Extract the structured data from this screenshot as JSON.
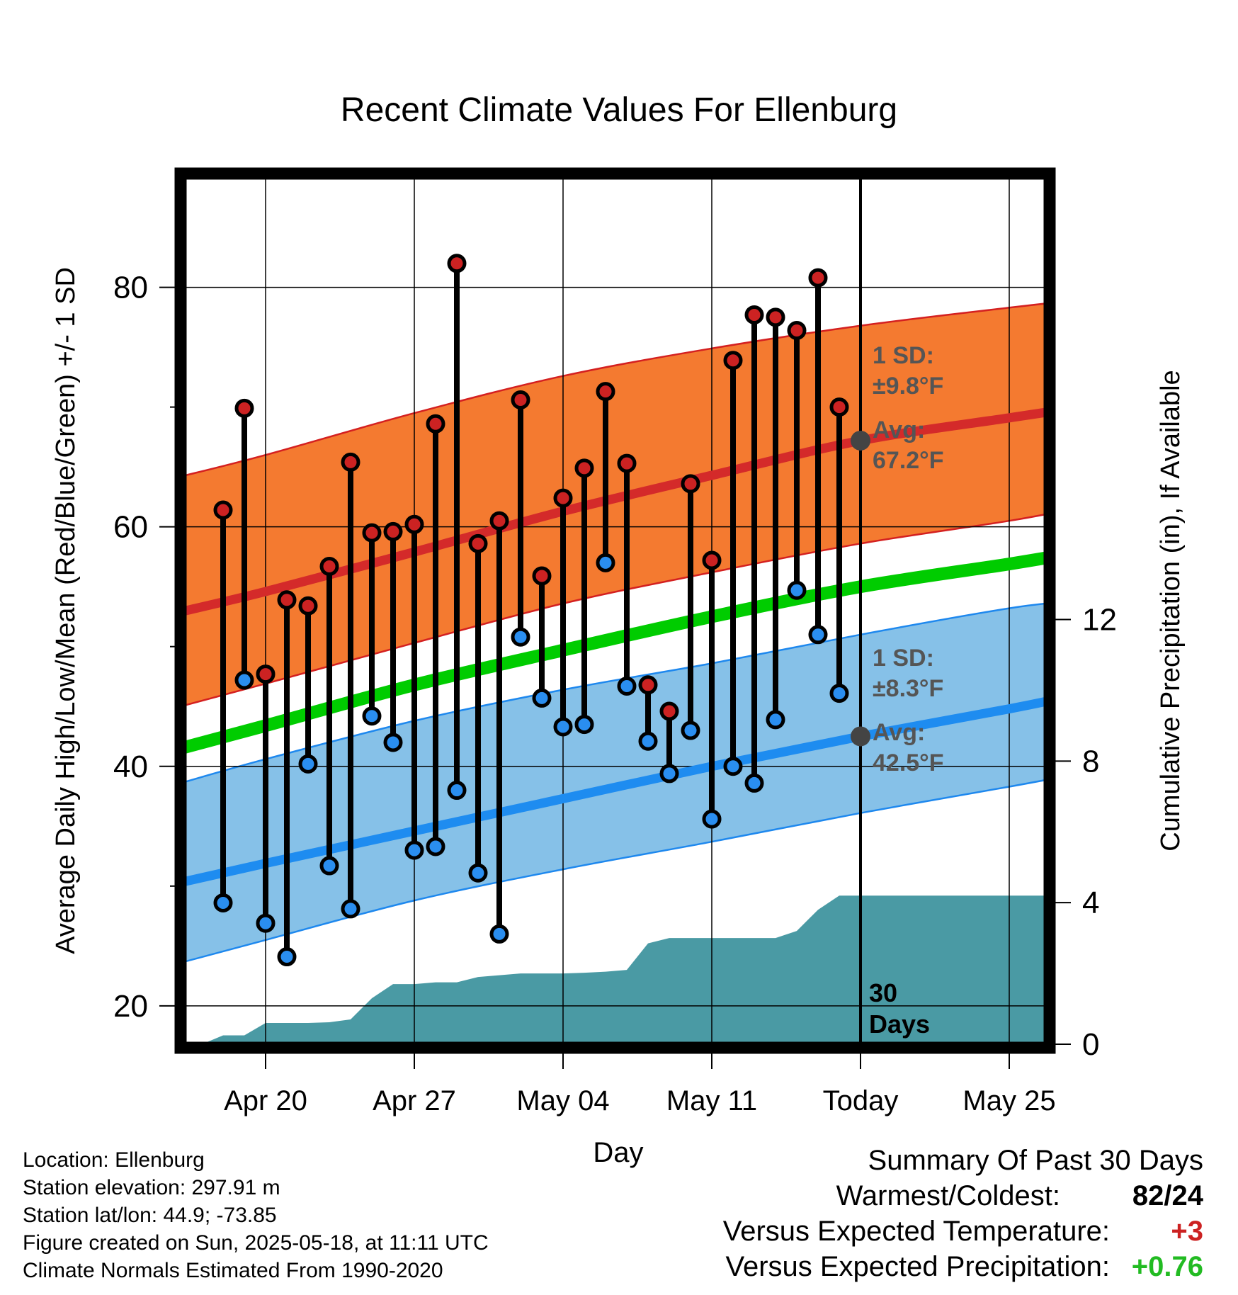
{
  "chart_data": {
    "type": "line",
    "title": "Recent Climate Values For Ellenburg",
    "xlabel": "Day",
    "ylabel": "Average Daily High/Low/Mean (Red/Blue/Green) +/- 1 SD",
    "y2label": "Cumulative Precipitation (in), If Available",
    "ylim": [
      16.5,
      89.5
    ],
    "y2lim": [
      -0.1,
      24.6
    ],
    "y_ticks": [
      20,
      40,
      60,
      80
    ],
    "y_minor_ticks": [
      30,
      50,
      70
    ],
    "y2_ticks": [
      0,
      4,
      8,
      12
    ],
    "x_range_dates": [
      "2025-04-16",
      "2025-05-28"
    ],
    "x_ticks": [
      {
        "date": "2025-04-20",
        "label": "Apr 20"
      },
      {
        "date": "2025-04-27",
        "label": "Apr 27"
      },
      {
        "date": "2025-05-04",
        "label": "May 04"
      },
      {
        "date": "2025-05-11",
        "label": "May 11"
      },
      {
        "date": "2025-05-18",
        "label": "Today"
      },
      {
        "date": "2025-05-25",
        "label": "May 25"
      }
    ],
    "grid": true,
    "today_date": "2025-05-18",
    "today_text_1": "30",
    "today_text_2": "Days",
    "normal_band_dates": [
      "2025-04-16",
      "2025-04-20",
      "2025-04-27",
      "2025-05-04",
      "2025-05-11",
      "2025-05-18",
      "2025-05-25",
      "2025-05-28"
    ],
    "normal_high": [
      52.9,
      54.6,
      57.9,
      61.3,
      64.3,
      67.2,
      69.1,
      69.9
    ],
    "normal_high_upper": [
      64.2,
      66.0,
      69.5,
      72.6,
      74.9,
      76.8,
      78.3,
      78.9
    ],
    "normal_high_lower": [
      45.0,
      46.9,
      50.3,
      53.6,
      56.2,
      58.6,
      60.5,
      61.5
    ],
    "normal_mean": [
      41.5,
      43.4,
      46.8,
      49.7,
      52.5,
      55.0,
      56.9,
      57.8
    ],
    "normal_low": [
      30.3,
      31.9,
      34.6,
      37.3,
      40.0,
      42.5,
      44.8,
      45.9
    ],
    "normal_low_upper": [
      38.6,
      40.6,
      43.8,
      46.4,
      48.6,
      51.0,
      53.2,
      53.8
    ],
    "normal_low_lower": [
      23.6,
      25.5,
      28.8,
      31.4,
      33.7,
      36.1,
      38.3,
      39.3
    ],
    "colors": {
      "high_band": "#f47a30",
      "high_band_edge": "#d42020",
      "high_line": "#d42a2a",
      "low_band": "#86c1e8",
      "low_band_edge": "#1e88ee",
      "low_line": "#1e8cf0",
      "mean_line": "#00cc00",
      "precip": "#4a9aa4",
      "avg_marker": "#444444",
      "annotation": "#555555",
      "high_dot": "#cc2222",
      "low_dot": "#2a8ef0"
    },
    "high_sd_label_1": "1 SD:",
    "high_sd_label_2": "±9.8°F",
    "high_avg_label_1": "Avg:",
    "high_avg_label_2": "67.2°F",
    "high_avg_value": 67.2,
    "low_sd_label_1": "1 SD:",
    "low_sd_label_2": "±8.3°F",
    "low_avg_label_1": "Avg:",
    "low_avg_label_2": "42.5°F",
    "low_avg_value": 42.5,
    "observations": [
      {
        "date": "2025-04-18",
        "high": 61.4,
        "low": 28.6
      },
      {
        "date": "2025-04-19",
        "high": 69.9,
        "low": 47.2
      },
      {
        "date": "2025-04-20",
        "high": 47.7,
        "low": 26.9
      },
      {
        "date": "2025-04-21",
        "high": 53.9,
        "low": 24.1
      },
      {
        "date": "2025-04-22",
        "high": 53.4,
        "low": 40.2
      },
      {
        "date": "2025-04-23",
        "high": 56.7,
        "low": 31.7
      },
      {
        "date": "2025-04-24",
        "high": 65.4,
        "low": 28.1
      },
      {
        "date": "2025-04-25",
        "high": 59.5,
        "low": 44.2
      },
      {
        "date": "2025-04-26",
        "high": 59.6,
        "low": 42.0
      },
      {
        "date": "2025-04-27",
        "high": 60.2,
        "low": 33.0
      },
      {
        "date": "2025-04-28",
        "high": 68.6,
        "low": 33.3
      },
      {
        "date": "2025-04-29",
        "high": 82.0,
        "low": 38.0
      },
      {
        "date": "2025-04-30",
        "high": 58.6,
        "low": 31.1
      },
      {
        "date": "2025-05-01",
        "high": 60.5,
        "low": 26.0
      },
      {
        "date": "2025-05-02",
        "high": 70.6,
        "low": 50.8
      },
      {
        "date": "2025-05-03",
        "high": 55.9,
        "low": 45.7
      },
      {
        "date": "2025-05-04",
        "high": 62.4,
        "low": 43.3
      },
      {
        "date": "2025-05-05",
        "high": 64.9,
        "low": 43.5
      },
      {
        "date": "2025-05-06",
        "high": 71.3,
        "low": 57.0
      },
      {
        "date": "2025-05-07",
        "high": 65.3,
        "low": 46.7
      },
      {
        "date": "2025-05-08",
        "high": 46.8,
        "low": 42.1
      },
      {
        "date": "2025-05-09",
        "high": 44.6,
        "low": 39.4
      },
      {
        "date": "2025-05-10",
        "high": 63.6,
        "low": 43.0
      },
      {
        "date": "2025-05-11",
        "high": 57.2,
        "low": 35.6
      },
      {
        "date": "2025-05-12",
        "high": 73.9,
        "low": 40.0
      },
      {
        "date": "2025-05-13",
        "high": 77.7,
        "low": 38.6
      },
      {
        "date": "2025-05-14",
        "high": 77.5,
        "low": 43.9
      },
      {
        "date": "2025-05-15",
        "high": 76.4,
        "low": 54.7
      },
      {
        "date": "2025-05-16",
        "high": 80.8,
        "low": 51.0
      },
      {
        "date": "2025-05-17",
        "high": 70.0,
        "low": 46.1
      }
    ],
    "precip_cumulative": [
      {
        "date": "2025-04-17",
        "value": 0.0
      },
      {
        "date": "2025-04-18",
        "value": 0.25
      },
      {
        "date": "2025-04-19",
        "value": 0.25
      },
      {
        "date": "2025-04-20",
        "value": 0.6
      },
      {
        "date": "2025-04-21",
        "value": 0.6
      },
      {
        "date": "2025-04-22",
        "value": 0.6
      },
      {
        "date": "2025-04-23",
        "value": 0.62
      },
      {
        "date": "2025-04-24",
        "value": 0.7
      },
      {
        "date": "2025-04-25",
        "value": 1.3
      },
      {
        "date": "2025-04-26",
        "value": 1.7
      },
      {
        "date": "2025-04-27",
        "value": 1.7
      },
      {
        "date": "2025-04-28",
        "value": 1.75
      },
      {
        "date": "2025-04-29",
        "value": 1.75
      },
      {
        "date": "2025-04-30",
        "value": 1.9
      },
      {
        "date": "2025-05-01",
        "value": 1.95
      },
      {
        "date": "2025-05-02",
        "value": 2.0
      },
      {
        "date": "2025-05-03",
        "value": 2.0
      },
      {
        "date": "2025-05-04",
        "value": 2.0
      },
      {
        "date": "2025-05-05",
        "value": 2.02
      },
      {
        "date": "2025-05-06",
        "value": 2.05
      },
      {
        "date": "2025-05-07",
        "value": 2.1
      },
      {
        "date": "2025-05-08",
        "value": 2.85
      },
      {
        "date": "2025-05-09",
        "value": 3.0
      },
      {
        "date": "2025-05-10",
        "value": 3.0
      },
      {
        "date": "2025-05-11",
        "value": 3.0
      },
      {
        "date": "2025-05-12",
        "value": 3.0
      },
      {
        "date": "2025-05-13",
        "value": 3.0
      },
      {
        "date": "2025-05-14",
        "value": 3.0
      },
      {
        "date": "2025-05-15",
        "value": 3.2
      },
      {
        "date": "2025-05-16",
        "value": 3.8
      },
      {
        "date": "2025-05-17",
        "value": 4.2
      },
      {
        "date": "2025-05-18",
        "value": 4.2
      },
      {
        "date": "2025-05-28",
        "value": 4.2
      }
    ]
  },
  "footer": {
    "location": "Location: Ellenburg",
    "elevation": "Station elevation: 297.91 m",
    "latlon": "Station lat/lon: 44.9; -73.85",
    "created": "Figure created on Sun, 2025-05-18, at 11:11 UTC",
    "normals": "Climate Normals Estimated From 1990-2020"
  },
  "summary": {
    "heading": "Summary Of Past 30 Days",
    "warmest_label": "Warmest/Coldest:",
    "warmest_value": "82/24",
    "temp_label": "Versus Expected Temperature:",
    "temp_value": "+3",
    "temp_color": "#cc2222",
    "precip_label": "Versus Expected Precipitation:",
    "precip_value": "+0.76",
    "precip_color": "#22bb22"
  }
}
